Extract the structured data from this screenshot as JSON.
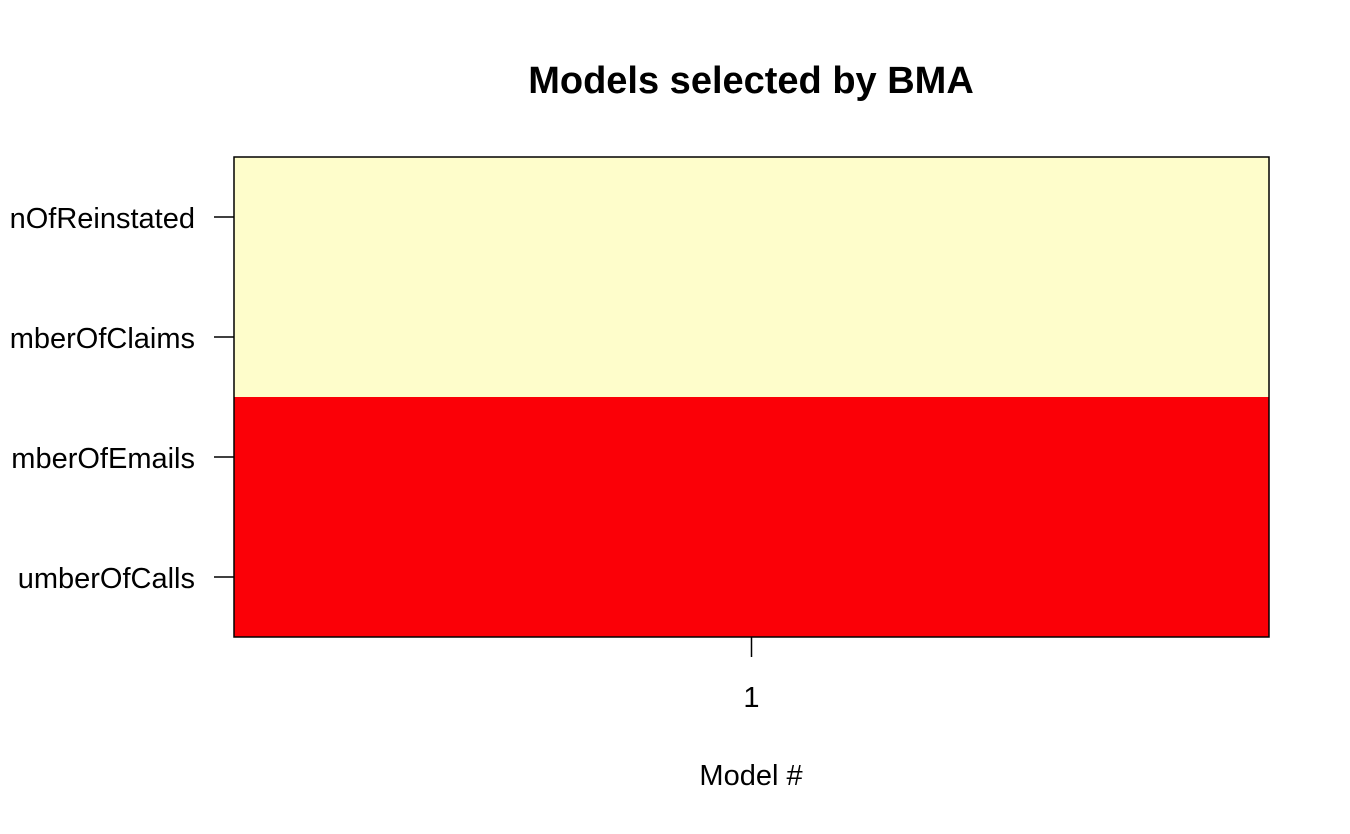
{
  "chart_data": {
    "type": "heatmap",
    "title": "Models selected by BMA",
    "xlabel": "Model #",
    "ylabel": "",
    "x_categories": [
      "1"
    ],
    "variables": [
      "nOfReinstated",
      "mberOfClaims",
      "mberOfEmails",
      "umberOfCalls"
    ],
    "included": [
      [
        false
      ],
      [
        false
      ],
      [
        true
      ],
      [
        true
      ]
    ],
    "colors": {
      "included": "#fb0007",
      "excluded": "#fefdcb",
      "border": "#000000"
    },
    "grid": false
  }
}
